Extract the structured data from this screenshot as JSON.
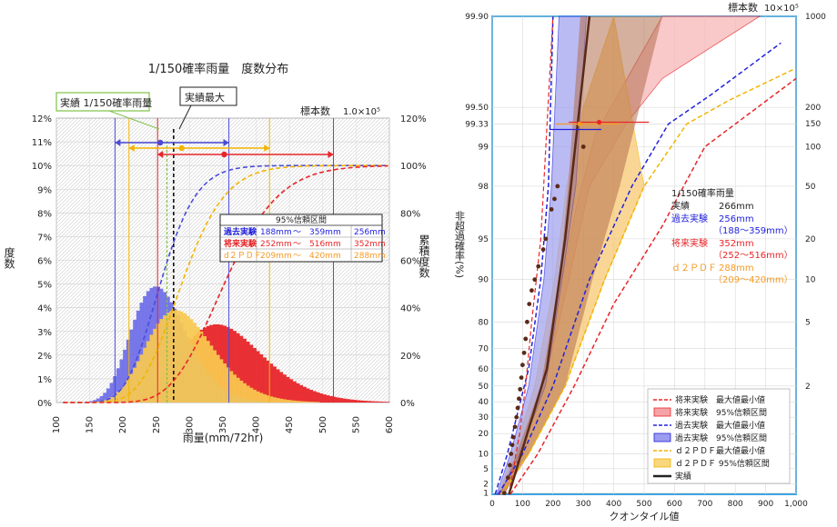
{
  "colors": {
    "future": "#e8262a",
    "future_band": "#f5a3a6",
    "past": "#2222dd",
    "past_band": "#6c6ce8",
    "d2pdf": "#f2b400",
    "d2pdf_band": "#f9c94f",
    "obs": "#5a2a18",
    "frame_blue": "#3ea4e0",
    "orange": "#f59a23"
  },
  "chart_data": [
    {
      "type": "bar",
      "title": "1/150確率雨量　度数分布",
      "xlabel": "雨量(mm/72hr)",
      "ylabel": "度数",
      "y2label": "累積度数",
      "sample_label": "標本数",
      "sample_value": "1.0×10⁵",
      "xlim": [
        100,
        600
      ],
      "ylim": [
        0,
        12
      ],
      "y2lim": [
        0,
        120
      ],
      "x_ticks": [
        "100",
        "150",
        "200",
        "250",
        "300",
        "350",
        "400",
        "450",
        "500",
        "550",
        "600"
      ],
      "y_ticks": [
        "0%",
        "1%",
        "2%",
        "3%",
        "4%",
        "5%",
        "6%",
        "7%",
        "8%",
        "9%",
        "10%",
        "11%",
        "12%"
      ],
      "y2_ticks": [
        "0%",
        "20%",
        "40%",
        "60%",
        "80%",
        "100%",
        "120%"
      ],
      "grid": true,
      "annotations": {
        "obs_label": "実績 1/150確率雨量",
        "obs_max_label": "実績最大",
        "obs_value": 266,
        "obs_max_value": 276
      },
      "ci_table": {
        "title": "95%信頼区間",
        "rows": [
          {
            "name": "過去実験",
            "low": "188mm",
            "sep": "～",
            "high": "359mm",
            "center": "256mm"
          },
          {
            "name": "将来実験",
            "low": "252mm",
            "sep": "～",
            "high": "516mm",
            "center": "352mm"
          },
          {
            "name": "d２ＰＤＦ",
            "low": "209mm",
            "sep": "～",
            "high": "420mm",
            "center": "288mm"
          }
        ]
      },
      "series": [
        {
          "name": "過去実験",
          "center": 256,
          "low": 188,
          "high": 359,
          "peak_percent": 4.9
        },
        {
          "name": "d２ＰＤＦ",
          "center": 288,
          "low": 209,
          "high": 420,
          "peak_percent": 3.9
        },
        {
          "name": "将来実験",
          "center": 352,
          "low": 252,
          "high": 516,
          "peak_percent": 3.3
        }
      ]
    },
    {
      "type": "line",
      "xlabel": "クオンタイル値",
      "ylabel": "非超過確率(%)",
      "sample_label": "標本数",
      "sample_value": "10×10⁵",
      "xlim": [
        0,
        1000
      ],
      "x_ticks": [
        "0",
        "100",
        "200",
        "300",
        "400",
        "500",
        "600",
        "700",
        "800",
        "900",
        "1,000"
      ],
      "y_ticks": [
        "1",
        "2",
        "5",
        "10",
        "20",
        "30",
        "40",
        "50",
        "60",
        "70",
        "80",
        "90",
        "95",
        "98",
        "99",
        "99.33",
        "99.50",
        "99.90"
      ],
      "y2_ticks": [
        "1000",
        "200",
        "150",
        "100",
        "50",
        "20",
        "10",
        "5",
        "2"
      ],
      "legend_position": "bottom-right",
      "legend": [
        "将来実験　最大値最小値",
        "将来実験　95%信頼区間",
        "過去実験　最大値最小値",
        "過去実験　95%信頼区間",
        "ｄ２ＰＤＦ最大値最小値",
        "ｄ２ＰＤＦ 95%信頼区間",
        "実績"
      ],
      "info_box": {
        "title": "1/150確率雨量",
        "obs_label": "実績",
        "obs_value": "266mm",
        "past_label": "過去実験",
        "past_value": "256mm",
        "past_range": "（188～359mm）",
        "future_label": "将来実験",
        "future_value": "352mm",
        "future_range": "（252～516mm）",
        "d2pdf_label": "ｄ２ＰＤＦ",
        "d2pdf_value": "288mm",
        "d2pdf_range": "（209～420mm）"
      },
      "obs_points": [
        [
          40,
          1
        ],
        [
          52,
          3
        ],
        [
          58,
          6
        ],
        [
          62,
          10
        ],
        [
          66,
          14
        ],
        [
          70,
          18
        ],
        [
          75,
          24
        ],
        [
          80,
          30
        ],
        [
          84,
          36
        ],
        [
          88,
          42
        ],
        [
          92,
          48
        ],
        [
          96,
          55
        ],
        [
          100,
          62
        ],
        [
          105,
          68
        ],
        [
          110,
          74
        ],
        [
          115,
          80
        ],
        [
          122,
          85
        ],
        [
          130,
          88
        ],
        [
          140,
          90
        ],
        [
          152,
          92
        ],
        [
          168,
          94
        ],
        [
          176,
          95
        ],
        [
          195,
          97
        ],
        [
          205,
          97.5
        ],
        [
          215,
          98
        ],
        [
          300,
          99
        ]
      ],
      "curves": {
        "future_ci": [
          [
            20,
            0.9
          ],
          [
            80,
            10
          ],
          [
            170,
            50
          ],
          [
            252,
            90
          ],
          [
            320,
            98
          ],
          [
            440,
            99.33
          ],
          [
            560,
            99.7
          ],
          [
            880,
            99.9
          ]
        ],
        "future_min": [
          [
            40,
            0.9
          ],
          [
            95,
            10
          ],
          [
            160,
            50
          ],
          [
            215,
            85
          ],
          [
            275,
            97
          ],
          [
            340,
            99.2
          ],
          [
            560,
            99.9
          ]
        ],
        "future_max": [
          [
            60,
            0.9
          ],
          [
            150,
            10
          ],
          [
            270,
            50
          ],
          [
            400,
            85
          ],
          [
            560,
            96
          ],
          [
            700,
            99
          ],
          [
            1000,
            99.7
          ]
        ],
        "past_max": [
          [
            20,
            0.9
          ],
          [
            100,
            10
          ],
          [
            200,
            50
          ],
          [
            320,
            90
          ],
          [
            460,
            98
          ],
          [
            580,
            99.33
          ],
          [
            720,
            99.6
          ],
          [
            950,
            99.84
          ]
        ],
        "past_min": [
          [
            10,
            0.9
          ],
          [
            50,
            10
          ],
          [
            120,
            60
          ],
          [
            160,
            90
          ],
          [
            185,
            98
          ],
          [
            200,
            99.9
          ]
        ],
        "d2pdf_max": [
          [
            30,
            0.9
          ],
          [
            120,
            10
          ],
          [
            240,
            50
          ],
          [
            370,
            90
          ],
          [
            500,
            98
          ],
          [
            640,
            99.33
          ],
          [
            780,
            99.56
          ],
          [
            1000,
            99.75
          ]
        ]
      }
    }
  ]
}
